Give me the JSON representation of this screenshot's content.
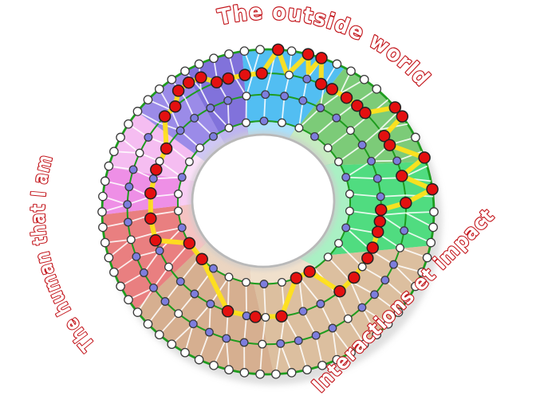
{
  "labels": {
    "top_arc": "The outside world",
    "left_arc": "The human that I am",
    "right_arc": "Interactions et impact",
    "stroke_color": "#C3151B",
    "fill_color": "#FFFFFF"
  },
  "wheel": {
    "geometry": {
      "outer": [
        336,
        266,
        208,
        204
      ],
      "hole": [
        330,
        252,
        89,
        83
      ],
      "ring_t": [
        1.0,
        0.72,
        0.47,
        0.16
      ],
      "counts": [
        66,
        48,
        38,
        30
      ],
      "offsets": [
        0,
        1.8,
        4.7,
        6
      ]
    },
    "palette": {
      "ring_line": "#1E9C1E",
      "mesh_line": "#FFFFFF",
      "path_line": "#FFE01A",
      "node_red": "#E31010",
      "node_purple": "#7D7DDE",
      "node_white": "#FFFFFF",
      "node_stroke": "#3A3A3A",
      "hole_rim": "#B9B9B9",
      "hole_halo": "#CCCCCC",
      "shadow": "#C9C9C9"
    },
    "sectors": [
      {
        "name": "sky-blue-top",
        "color": "#52BEF2",
        "tint": "#ABE0FA",
        "outer": [
          261,
          297.5
        ],
        "hole": [
          258,
          291
        ]
      },
      {
        "name": "sage-green-upper-right",
        "color": "#7CCB78",
        "tint": "#C6EBC1",
        "outer": [
          297.5,
          342
        ],
        "hole": [
          291,
          328
        ]
      },
      {
        "name": "bright-green-right",
        "color": "#50DC80",
        "tint": "#AAF0C4",
        "outer": [
          342,
          372
        ],
        "hole": [
          328,
          420
        ]
      },
      {
        "name": "light-tan-bottom-right",
        "color": "#DCBF9F",
        "tint": "#F0E0CC",
        "outer": [
          12,
          88
        ],
        "hole": [
          60,
          101
        ]
      },
      {
        "name": "dark-tan-bottom-left",
        "color": "#D6AF90",
        "tint": "#EBD5C1",
        "outer": [
          88,
          143
        ],
        "hole": [
          101,
          142
        ]
      },
      {
        "name": "salmon-red-left",
        "color": "#E97F80",
        "tint": "#F5C3C2",
        "outer": [
          143,
          179
        ],
        "hole": [
          142,
          177
        ]
      },
      {
        "name": "orchid-pink-left",
        "color": "#EE8FE6",
        "tint": "#F8CDF4",
        "outer": [
          179,
          196
        ],
        "hole": [
          177,
          197
        ]
      },
      {
        "name": "light-pink-upper-left",
        "color": "#F5BDF1",
        "tint": "#FBE1F9",
        "outer": [
          196,
          218
        ],
        "hole": [
          197,
          216
        ]
      },
      {
        "name": "violet-upper-left",
        "color": "#9B8BE8",
        "tint": "#CFC7F5",
        "outer": [
          218,
          240
        ],
        "hole": [
          216,
          238
        ]
      },
      {
        "name": "slate-purple-top-left",
        "color": "#8172DB",
        "tint": "#BEB6F0",
        "outer": [
          240,
          261
        ],
        "hole": [
          238,
          258
        ]
      }
    ],
    "path_points": [
      {
        "a": 273.5,
        "r": 0,
        "red": true
      },
      {
        "a": 278.5,
        "r": 1,
        "red": false
      },
      {
        "a": 284,
        "r": 0,
        "red": true
      },
      {
        "a": 286.4,
        "r": 0.72,
        "red": false
      },
      {
        "a": 288.8,
        "r": 0,
        "red": true
      },
      {
        "a": 293,
        "r": 1,
        "red": true
      },
      {
        "a": 298,
        "r": 1,
        "red": true
      },
      {
        "a": 305,
        "r": 1,
        "red": true
      },
      {
        "a": 310.5,
        "r": 1,
        "red": true
      },
      {
        "a": 315,
        "r": 1,
        "red": true
      },
      {
        "a": 320,
        "r": 0,
        "red": true
      },
      {
        "a": 324,
        "r": 0,
        "red": true
      },
      {
        "a": 327.5,
        "r": 1,
        "red": true
      },
      {
        "a": 332,
        "r": 1,
        "red": true
      },
      {
        "a": 340.5,
        "r": 0,
        "red": true
      },
      {
        "a": 346,
        "r": 1,
        "red": true
      },
      {
        "a": 352,
        "r": 0,
        "red": true
      },
      {
        "a": 357.5,
        "r": 1,
        "red": true
      },
      {
        "a": 2,
        "r": 2,
        "red": true
      },
      {
        "a": 8,
        "r": 2,
        "red": true
      },
      {
        "a": 13.5,
        "r": 2,
        "red": true
      },
      {
        "a": 22,
        "r": 2,
        "red": true
      },
      {
        "a": 28,
        "r": 2,
        "red": true
      },
      {
        "a": 40,
        "r": 2,
        "red": true
      },
      {
        "a": 50,
        "r": 2,
        "red": true
      },
      {
        "a": 58,
        "r": 3,
        "red": true
      },
      {
        "a": 68,
        "r": 3,
        "red": true
      },
      {
        "a": 82,
        "r": 2,
        "red": true
      },
      {
        "a": 95,
        "r": 2,
        "red": true
      },
      {
        "a": 109,
        "r": 2,
        "red": true
      },
      {
        "a": 136,
        "r": 3,
        "red": true
      },
      {
        "a": 150,
        "r": 3,
        "red": true
      },
      {
        "a": 162,
        "r": 2,
        "red": true
      },
      {
        "a": 173.5,
        "r": 2,
        "red": true
      },
      {
        "a": 186.5,
        "r": 2,
        "red": true
      },
      {
        "a": 199,
        "r": 2,
        "red": true
      },
      {
        "a": 211,
        "r": 2,
        "red": true
      },
      {
        "a": 223,
        "r": 1,
        "red": true
      },
      {
        "a": 229,
        "r": 1,
        "red": true
      },
      {
        "a": 234,
        "r": 0.55,
        "red": true
      },
      {
        "a": 239,
        "r": 0.5,
        "red": true
      },
      {
        "a": 244,
        "r": 0.55,
        "red": true
      },
      {
        "a": 249,
        "r": 1,
        "red": true
      },
      {
        "a": 254,
        "r": 1,
        "red": true
      },
      {
        "a": 261,
        "r": 1,
        "red": true
      },
      {
        "a": 268,
        "r": 1,
        "red": true
      }
    ]
  }
}
